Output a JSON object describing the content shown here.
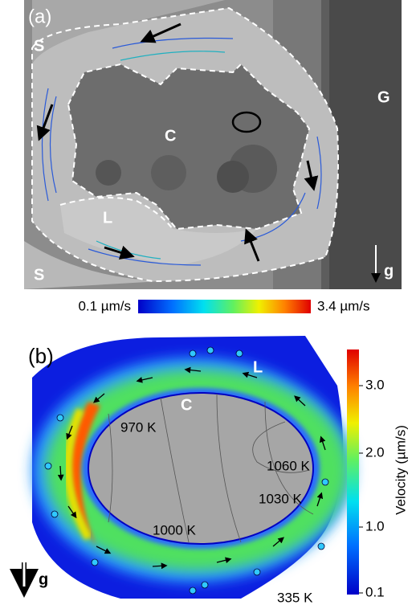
{
  "panel_a": {
    "label": "(a)",
    "regions": {
      "s_top": "S",
      "s_bottom": "S",
      "g_right": "G",
      "c_center": "C",
      "l_liquid": "L"
    },
    "gravity": "g",
    "colorbar": {
      "min_label": "0.1 µm/s",
      "max_label": "3.4 µm/s"
    }
  },
  "panel_b": {
    "label": "(b)",
    "regions": {
      "l_liquid": "L",
      "c_center": "C"
    },
    "isotherms": [
      "970 K",
      "1060 K",
      "1030 K",
      "1000 K",
      "335 K"
    ],
    "gravity": "g",
    "colorbar": {
      "title": "Velocity (µm/s)",
      "ticks": [
        "3.0",
        "2.0",
        "1.0",
        "0.1"
      ]
    }
  }
}
